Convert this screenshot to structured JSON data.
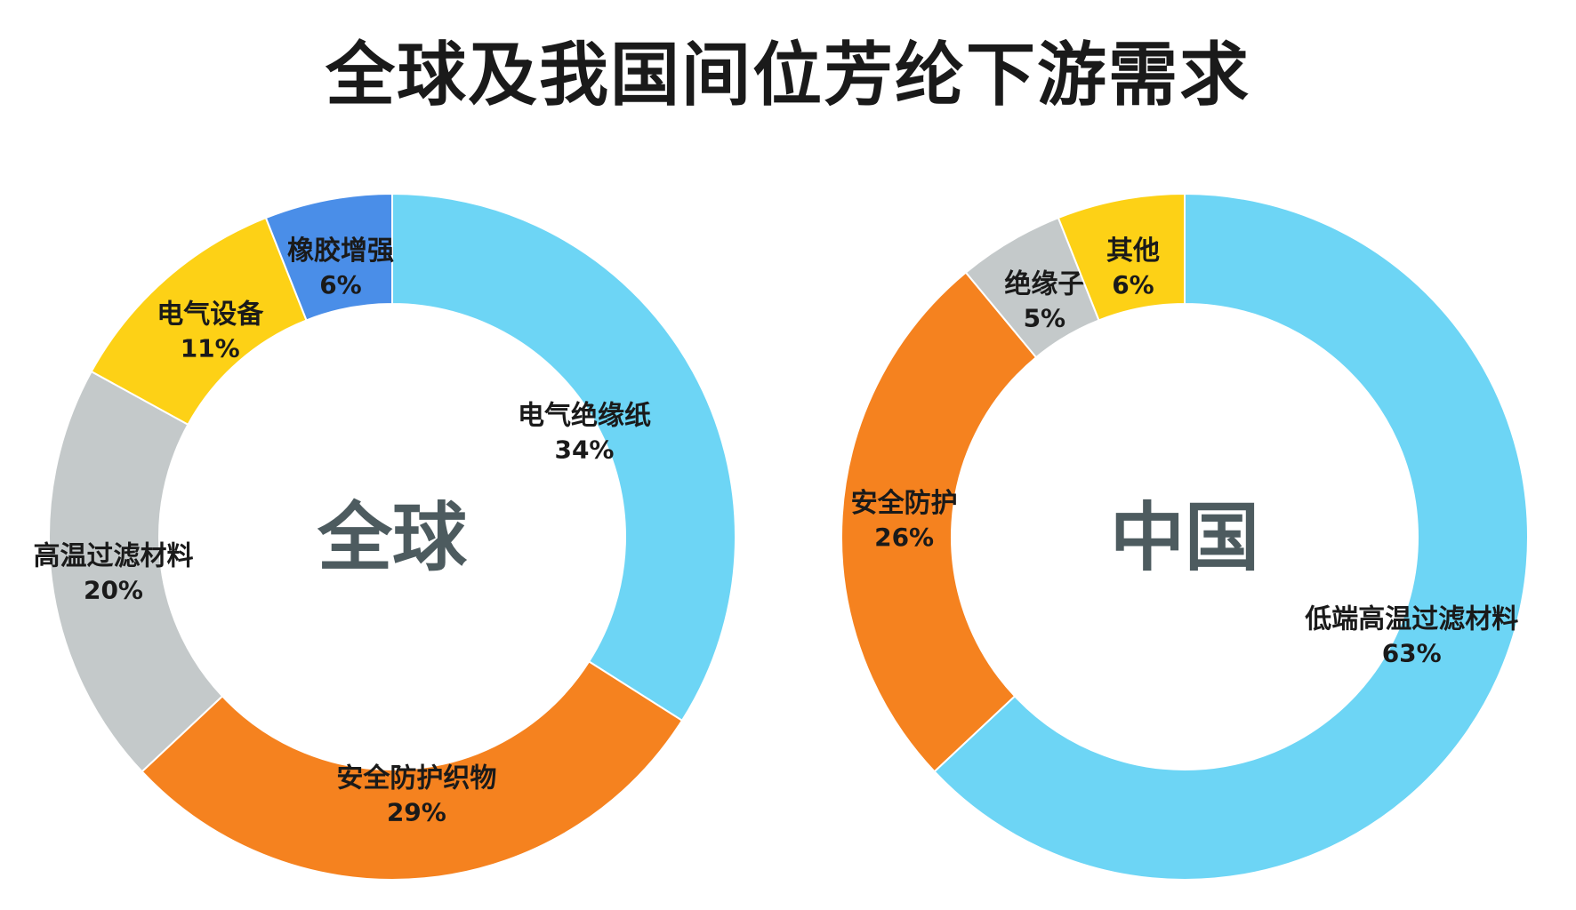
{
  "title": "全球及我国间位芳纶下游需求",
  "chart_data": [
    {
      "type": "pie",
      "center_label": "全球",
      "categories": [
        "电气绝缘纸",
        "安全防护织物",
        "高温过滤材料",
        "电气设备",
        "橡胶增强"
      ],
      "values": [
        34,
        29,
        20,
        11,
        6
      ],
      "value_labels": [
        "34%",
        "29%",
        "20%",
        "11%",
        "6%"
      ],
      "colors": [
        "#6dd5f5",
        "#f5821f",
        "#c4c9ca",
        "#fdd116",
        "#4a8ee8"
      ]
    },
    {
      "type": "pie",
      "center_label": "中国",
      "categories": [
        "低端高温过滤材料",
        "安全防护",
        "绝缘子",
        "其他"
      ],
      "values": [
        63,
        26,
        5,
        6
      ],
      "value_labels": [
        "63%",
        "26%",
        "5%",
        "6%"
      ],
      "colors": [
        "#6dd5f5",
        "#f5821f",
        "#c4c9ca",
        "#fdd116"
      ]
    }
  ]
}
